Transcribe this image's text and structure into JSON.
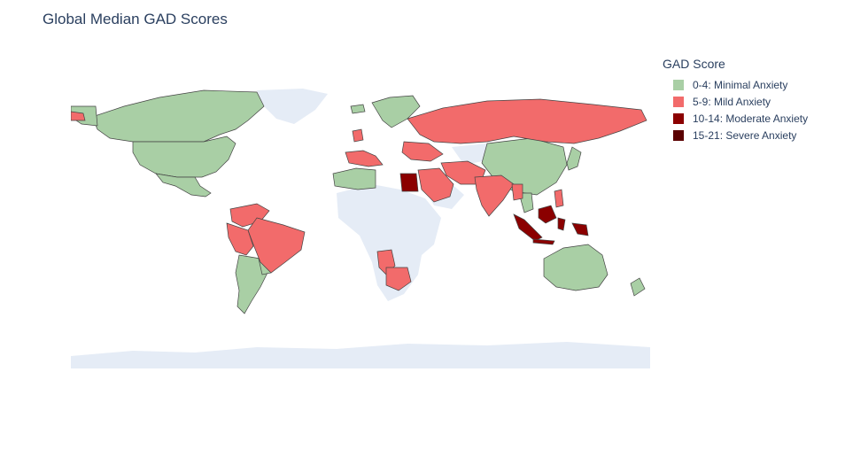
{
  "title": "Global Median GAD Scores",
  "legend": {
    "title": "GAD Score",
    "items": [
      {
        "label": "0-4: Minimal Anxiety",
        "color": "#a9cfa5"
      },
      {
        "label": "5-9: Mild Anxiety",
        "color": "#f26b6b"
      },
      {
        "label": "10-14: Moderate Anxiety",
        "color": "#8b0000"
      },
      {
        "label": "15-21: Severe Anxiety",
        "color": "#5a0000"
      }
    ]
  },
  "colors": {
    "land_no_data": "#e5ecf6",
    "border": "#444444",
    "background": "#ffffff"
  },
  "map_data": {
    "projection": "equirectangular",
    "lon_range": [
      -180,
      180
    ],
    "lat_range": [
      -90,
      90
    ],
    "minimal": [
      "Canada",
      "United States",
      "Mexico",
      "Greenland (part)",
      "Argentina",
      "Chile",
      "Paraguay",
      "Uruguay",
      "China",
      "Mongolia",
      "Kazakhstan",
      "Japan",
      "Australia",
      "New Zealand",
      "Algeria",
      "Morocco",
      "Sweden",
      "Norway",
      "Finland",
      "Iceland"
    ],
    "mild": [
      "Russia",
      "Brazil",
      "Colombia",
      "Venezuela",
      "Peru",
      "Bolivia",
      "Ecuador",
      "India",
      "Saudi Arabia",
      "Pakistan",
      "Iran",
      "Turkey",
      "Philippines",
      "South Africa",
      "Namibia",
      "Angola",
      "United Kingdom",
      "Spain",
      "Italy",
      "Ukraine",
      "Myanmar"
    ],
    "moderate": [
      "Indonesia",
      "Egypt",
      "Malaysia"
    ],
    "severe": []
  }
}
